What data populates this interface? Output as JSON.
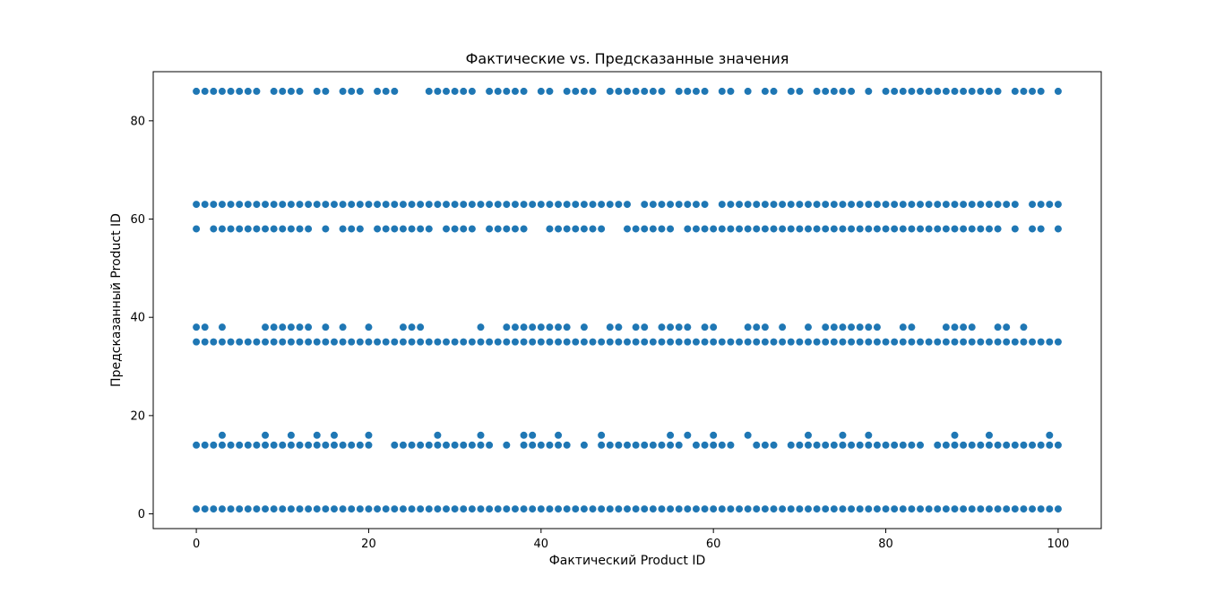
{
  "chart_data": {
    "type": "scatter",
    "title": "Фактические vs. Предсказанные значения",
    "xlabel": "Фактический Product ID",
    "ylabel": "Предсказанный Product ID",
    "xlim": [
      -5,
      105
    ],
    "ylim": [
      -3,
      90
    ],
    "xticks": [
      0,
      20,
      40,
      60,
      80,
      100
    ],
    "yticks": [
      0,
      20,
      40,
      60,
      80
    ],
    "x_tick_labels": [
      "0",
      "20",
      "40",
      "60",
      "80",
      "100"
    ],
    "y_tick_labels": [
      "0",
      "20",
      "40",
      "60",
      "80"
    ],
    "grid": false,
    "marker_color": "#1f77b4",
    "points": [
      {
        "y": 86,
        "x": [
          0,
          1,
          2,
          3,
          4,
          5,
          6,
          7,
          9,
          10,
          11,
          12,
          14,
          15,
          17,
          18,
          19,
          21,
          22,
          23,
          27,
          28,
          29,
          30,
          31,
          32,
          34,
          35,
          36,
          37,
          38,
          40,
          41,
          43,
          44,
          45,
          46,
          48,
          49,
          50,
          51,
          52,
          53,
          54,
          56,
          57,
          58,
          59,
          61,
          62,
          64,
          66,
          67,
          69,
          70,
          72,
          73,
          74,
          75,
          76,
          78,
          80,
          81,
          82,
          83,
          84,
          85,
          86,
          87,
          88,
          89,
          90,
          91,
          92,
          93,
          95,
          96,
          97,
          98,
          100
        ]
      },
      {
        "y": 63,
        "x": [
          0,
          1,
          2,
          3,
          4,
          5,
          6,
          7,
          8,
          9,
          10,
          11,
          12,
          13,
          14,
          15,
          16,
          17,
          18,
          19,
          20,
          21,
          22,
          23,
          24,
          25,
          26,
          27,
          28,
          29,
          30,
          31,
          32,
          33,
          34,
          35,
          36,
          37,
          38,
          39,
          40,
          41,
          42,
          43,
          44,
          45,
          46,
          47,
          48,
          49,
          50,
          52,
          53,
          54,
          55,
          56,
          57,
          58,
          59,
          61,
          62,
          63,
          64,
          65,
          66,
          67,
          68,
          69,
          70,
          71,
          72,
          73,
          74,
          75,
          76,
          77,
          78,
          79,
          80,
          81,
          82,
          83,
          84,
          85,
          86,
          87,
          88,
          89,
          90,
          91,
          92,
          93,
          94,
          95,
          97,
          98,
          99,
          100
        ]
      },
      {
        "y": 58,
        "x": [
          0,
          2,
          3,
          4,
          5,
          6,
          7,
          8,
          9,
          10,
          11,
          12,
          13,
          15,
          17,
          18,
          19,
          21,
          22,
          23,
          24,
          25,
          26,
          27,
          29,
          30,
          31,
          32,
          34,
          35,
          36,
          37,
          38,
          41,
          42,
          43,
          44,
          45,
          46,
          47,
          50,
          51,
          52,
          53,
          54,
          55,
          57,
          58,
          59,
          60,
          61,
          62,
          63,
          64,
          65,
          66,
          67,
          68,
          69,
          70,
          71,
          72,
          73,
          74,
          75,
          76,
          77,
          78,
          79,
          80,
          81,
          82,
          83,
          84,
          85,
          86,
          87,
          88,
          89,
          90,
          91,
          92,
          93,
          95,
          97,
          98,
          100
        ]
      },
      {
        "y": 38,
        "x": [
          0,
          1,
          3,
          8,
          9,
          10,
          11,
          12,
          13,
          15,
          17,
          20,
          24,
          25,
          26,
          33,
          36,
          37,
          38,
          39,
          40,
          41,
          42,
          43,
          45,
          48,
          49,
          51,
          52,
          54,
          55,
          56,
          57,
          59,
          60,
          64,
          65,
          66,
          68,
          71,
          73,
          74,
          75,
          76,
          77,
          78,
          79,
          82,
          83,
          87,
          88,
          89,
          90,
          93,
          94,
          96
        ]
      },
      {
        "y": 35,
        "x": [
          0,
          1,
          2,
          3,
          4,
          5,
          6,
          7,
          8,
          9,
          10,
          11,
          12,
          13,
          14,
          15,
          16,
          17,
          18,
          19,
          20,
          21,
          22,
          23,
          24,
          25,
          26,
          27,
          28,
          29,
          30,
          31,
          32,
          33,
          34,
          35,
          36,
          37,
          38,
          39,
          40,
          41,
          42,
          43,
          44,
          45,
          46,
          47,
          48,
          49,
          50,
          51,
          52,
          53,
          54,
          55,
          56,
          57,
          58,
          59,
          60,
          61,
          62,
          63,
          64,
          65,
          66,
          67,
          68,
          69,
          70,
          71,
          72,
          73,
          74,
          75,
          76,
          77,
          78,
          79,
          80,
          81,
          82,
          83,
          84,
          85,
          86,
          87,
          88,
          89,
          90,
          91,
          92,
          93,
          94,
          95,
          96,
          97,
          98,
          99,
          100
        ]
      },
      {
        "y": 16,
        "x": [
          3,
          8,
          11,
          14,
          16,
          20,
          28,
          33,
          38,
          39,
          42,
          47,
          55,
          57,
          60,
          64,
          71,
          75,
          78,
          88,
          92,
          99
        ]
      },
      {
        "y": 14,
        "x": [
          0,
          1,
          2,
          3,
          4,
          5,
          6,
          7,
          8,
          9,
          10,
          11,
          12,
          13,
          14,
          15,
          16,
          17,
          18,
          19,
          20,
          23,
          24,
          25,
          26,
          27,
          28,
          29,
          30,
          31,
          32,
          33,
          34,
          36,
          38,
          39,
          40,
          41,
          42,
          43,
          45,
          47,
          48,
          49,
          50,
          51,
          52,
          53,
          54,
          55,
          56,
          58,
          59,
          60,
          61,
          62,
          65,
          66,
          67,
          69,
          70,
          71,
          72,
          73,
          74,
          75,
          76,
          77,
          78,
          79,
          80,
          81,
          82,
          83,
          84,
          86,
          87,
          88,
          89,
          90,
          91,
          92,
          93,
          94,
          95,
          96,
          97,
          98,
          99,
          100
        ]
      },
      {
        "y": 1,
        "x": [
          0,
          1,
          2,
          3,
          4,
          5,
          6,
          7,
          8,
          9,
          10,
          11,
          12,
          13,
          14,
          15,
          16,
          17,
          18,
          19,
          20,
          21,
          22,
          23,
          24,
          25,
          26,
          27,
          28,
          29,
          30,
          31,
          32,
          33,
          34,
          35,
          36,
          37,
          38,
          39,
          40,
          41,
          42,
          43,
          44,
          45,
          46,
          47,
          48,
          49,
          50,
          51,
          52,
          53,
          54,
          55,
          56,
          57,
          58,
          59,
          60,
          61,
          62,
          63,
          64,
          65,
          66,
          67,
          68,
          69,
          70,
          71,
          72,
          73,
          74,
          75,
          76,
          77,
          78,
          79,
          80,
          81,
          82,
          83,
          84,
          85,
          86,
          87,
          88,
          89,
          90,
          91,
          92,
          93,
          94,
          95,
          96,
          97,
          98,
          99,
          100
        ]
      }
    ]
  }
}
